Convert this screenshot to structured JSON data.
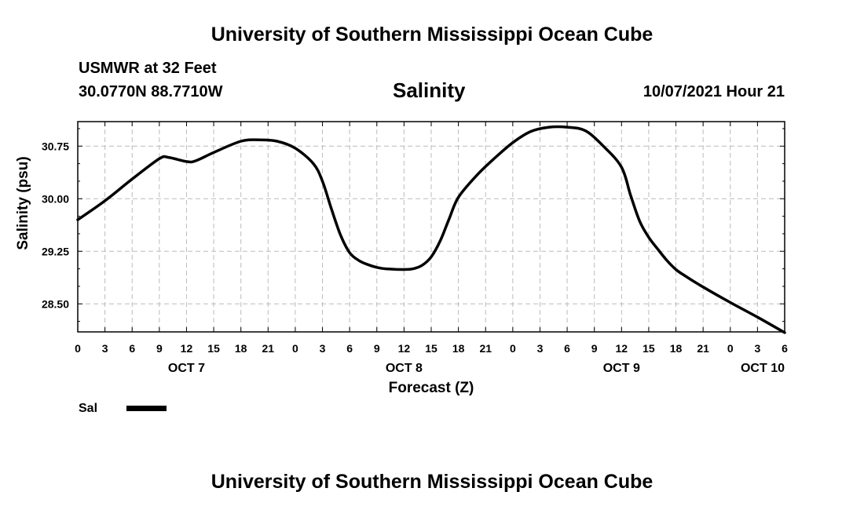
{
  "header": {
    "title": "University of Southern Mississippi Ocean Cube",
    "station": "USMWR at 32 Feet",
    "coordinates": "30.0770N  88.7710W",
    "chart_title": "Salinity",
    "datetime": "10/07/2021 Hour 21"
  },
  "footer": {
    "title": "University of Southern Mississippi Ocean Cube"
  },
  "chart_data": {
    "type": "line",
    "title": "Salinity",
    "xlabel": "Forecast (Z)",
    "ylabel": "Salinity (psu)",
    "ylim": [
      28.1,
      31.1
    ],
    "xlim": [
      0,
      78
    ],
    "grid": true,
    "yticks": [
      28.5,
      29.25,
      30.0,
      30.75
    ],
    "ytick_labels": [
      "28.50",
      "29.25",
      "30.00",
      "30.75"
    ],
    "xticks": [
      0,
      3,
      6,
      9,
      12,
      15,
      18,
      21,
      24,
      27,
      30,
      33,
      36,
      39,
      42,
      45,
      48,
      51,
      54,
      57,
      60,
      63,
      66,
      69,
      72,
      75,
      78
    ],
    "xtick_labels": [
      "0",
      "3",
      "6",
      "9",
      "12",
      "15",
      "18",
      "21",
      "0",
      "3",
      "6",
      "9",
      "12",
      "15",
      "18",
      "21",
      "0",
      "3",
      "6",
      "9",
      "12",
      "15",
      "18",
      "21",
      "0",
      "3",
      "6"
    ],
    "date_labels": [
      {
        "label": "OCT 7",
        "x": 12
      },
      {
        "label": "OCT 8",
        "x": 36
      },
      {
        "label": "OCT 9",
        "x": 60
      },
      {
        "label": "OCT 10",
        "x": 78
      }
    ],
    "legend": {
      "position": "bottom-left",
      "entries": [
        "Sal"
      ]
    },
    "series": [
      {
        "name": "Sal",
        "color": "#000000",
        "x": [
          0,
          3,
          6,
          9,
          10,
          12,
          13,
          15,
          18,
          20,
          22,
          24,
          26,
          27,
          28,
          29,
          30,
          31,
          32,
          33,
          34,
          36,
          37,
          38,
          39,
          40,
          41,
          42,
          44,
          46,
          48,
          50,
          52,
          54,
          56,
          58,
          60,
          61,
          62,
          63,
          64,
          65,
          66,
          67,
          69,
          72,
          75,
          78
        ],
        "y": [
          29.7,
          29.97,
          30.28,
          30.57,
          30.59,
          30.53,
          30.54,
          30.66,
          30.82,
          30.84,
          30.82,
          30.72,
          30.5,
          30.25,
          29.85,
          29.48,
          29.23,
          29.12,
          29.06,
          29.02,
          29.0,
          28.99,
          29.0,
          29.05,
          29.17,
          29.4,
          29.72,
          30.02,
          30.33,
          30.58,
          30.8,
          30.96,
          31.02,
          31.02,
          30.97,
          30.75,
          30.45,
          30.05,
          29.68,
          29.45,
          29.28,
          29.12,
          28.99,
          28.9,
          28.74,
          28.52,
          28.31,
          28.09
        ]
      }
    ]
  }
}
